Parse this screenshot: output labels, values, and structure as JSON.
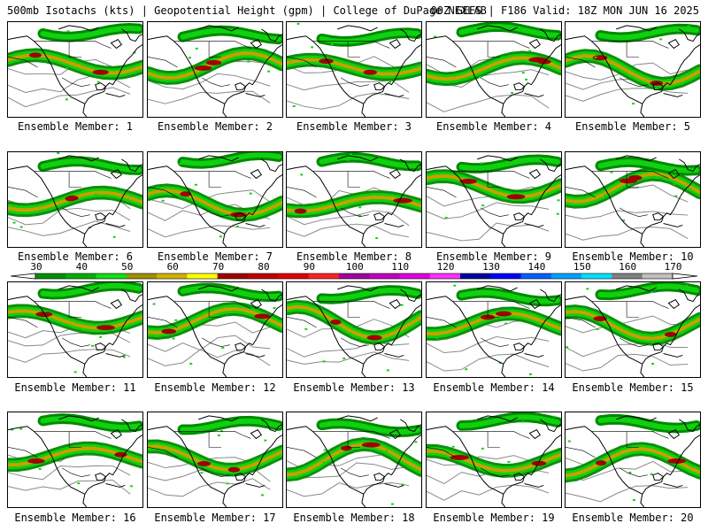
{
  "header": {
    "left": "500mb Isotachs (kts) | Geopotential Height (gpm) | College of DuPage NEXLAB",
    "right": "00Z GEFS | F186 Valid: 18Z MON JUN 16 2025"
  },
  "colorbar": {
    "labels": [
      "30",
      "40",
      "50",
      "60",
      "70",
      "80",
      "90",
      "100",
      "110",
      "120",
      "130",
      "140",
      "150",
      "160",
      "170"
    ],
    "colors": [
      "#009000",
      "#00b000",
      "#10e010",
      "#a09000",
      "#d0b000",
      "#ffff00",
      "#a00000",
      "#c00000",
      "#e00000",
      "#ff2020",
      "#a000a0",
      "#c000c0",
      "#e000e0",
      "#ff30ff",
      "#0000a0",
      "#0000ff",
      "#0060ff",
      "#00a0ff",
      "#00e0ff",
      "#808080",
      "#c0c0c0"
    ]
  },
  "members": [
    {
      "label": "Ensemble Member: 1"
    },
    {
      "label": "Ensemble Member: 2"
    },
    {
      "label": "Ensemble Member: 3"
    },
    {
      "label": "Ensemble Member: 4"
    },
    {
      "label": "Ensemble Member: 5"
    },
    {
      "label": "Ensemble Member: 6"
    },
    {
      "label": "Ensemble Member: 7"
    },
    {
      "label": "Ensemble Member: 8"
    },
    {
      "label": "Ensemble Member: 9"
    },
    {
      "label": "Ensemble Member: 10"
    },
    {
      "label": "Ensemble Member: 11"
    },
    {
      "label": "Ensemble Member: 12"
    },
    {
      "label": "Ensemble Member: 13"
    },
    {
      "label": "Ensemble Member: 14"
    },
    {
      "label": "Ensemble Member: 15"
    },
    {
      "label": "Ensemble Member: 16"
    },
    {
      "label": "Ensemble Member: 17"
    },
    {
      "label": "Ensemble Member: 18"
    },
    {
      "label": "Ensemble Member: 19"
    },
    {
      "label": "Ensemble Member: 20"
    }
  ],
  "map_colors": {
    "jet_core": "#a00000",
    "jet_mid": "#c8a000",
    "jet_light": "#10d010",
    "jet_dark": "#008a00",
    "height_contour": "#888888",
    "coastline": "#000000"
  }
}
